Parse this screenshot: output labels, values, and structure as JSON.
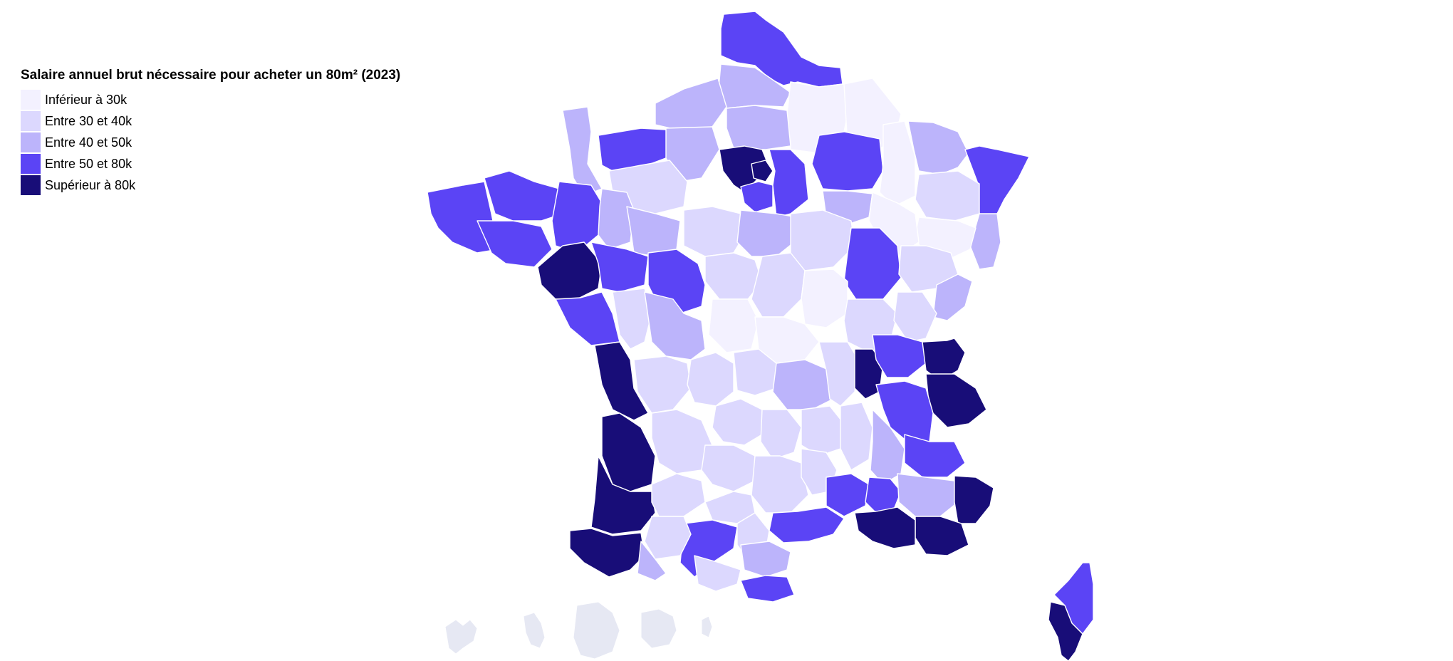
{
  "legend": {
    "title": "Salaire annuel brut nécessaire pour acheter un 80m² (2023)",
    "items": [
      {
        "label": "Inférieur à 30k",
        "color": "#f3f1ff"
      },
      {
        "label": "Entre 30 et 40k",
        "color": "#dcd8fe"
      },
      {
        "label": "Entre 40 et 50k",
        "color": "#bcb4fb"
      },
      {
        "label": "Entre 50 et 80k",
        "color": "#5b44f5"
      },
      {
        "label": "Supérieur à 80k",
        "color": "#180d78"
      }
    ]
  },
  "colors": {
    "overseas": "#e6e8f3"
  }
}
